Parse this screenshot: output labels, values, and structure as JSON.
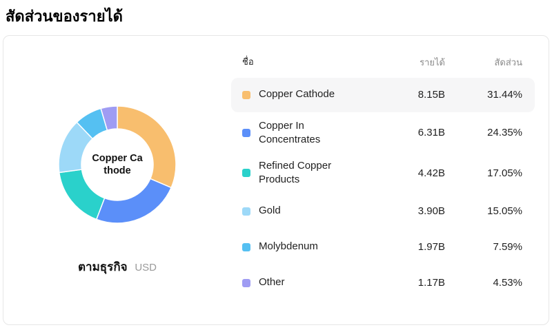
{
  "page": {
    "title": "สัดส่วนของรายได้"
  },
  "card": {
    "caption": {
      "label": "ตามธุรกิจ",
      "currency": "USD"
    }
  },
  "table": {
    "headers": {
      "name": "ชื่อ",
      "revenue": "รายได้",
      "share": "สัดส่วน"
    }
  },
  "chart_data": {
    "type": "pie",
    "donut": true,
    "title": "สัดส่วนของรายได้",
    "center_label": "Copper Cathode",
    "center_label_lines": [
      "Copper Ca",
      "thode"
    ],
    "categories": [
      "Copper Cathode",
      "Copper In Concentrates",
      "Refined Copper Products",
      "Gold",
      "Molybdenum",
      "Other"
    ],
    "values": [
      31.44,
      24.35,
      17.05,
      15.05,
      7.59,
      4.53
    ],
    "revenues": [
      "8.15B",
      "6.31B",
      "4.42B",
      "3.90B",
      "1.97B",
      "1.17B"
    ],
    "shares": [
      "31.44%",
      "24.35%",
      "17.05%",
      "15.05%",
      "7.59%",
      "4.53%"
    ],
    "colors": [
      "#F8BE6E",
      "#5B8FF9",
      "#2AD1CB",
      "#9DD9F8",
      "#55C0F2",
      "#9F9CF3"
    ],
    "highlighted_index": 0,
    "start_angle_deg": -90,
    "direction": "clockwise",
    "legend_position": "right"
  }
}
